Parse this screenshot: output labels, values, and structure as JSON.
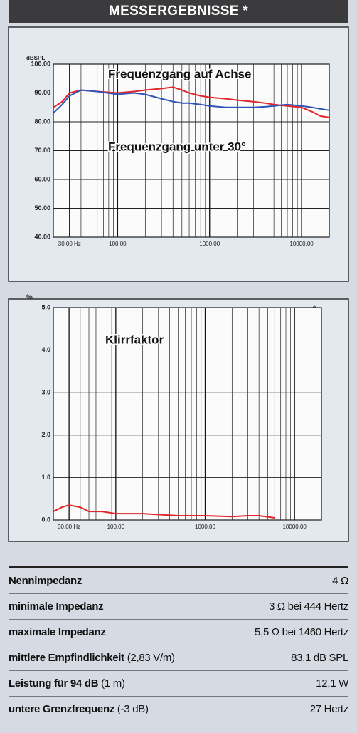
{
  "header": {
    "title": "MESSERGEBNISSE *"
  },
  "chart_data": [
    {
      "type": "line",
      "y_unit": "dBSPL",
      "log_x": true,
      "grid": true,
      "minor_grid": true,
      "x": [
        20,
        25,
        30,
        40,
        60,
        100,
        150,
        200,
        300,
        400,
        500,
        600,
        800,
        1000,
        1500,
        2000,
        3000,
        4000,
        5000,
        7000,
        10000,
        13000,
        16000,
        20000
      ],
      "series": [
        {
          "name": "Frequenzgang auf Achse",
          "color": "#e0262a",
          "values": [
            85,
            87,
            90,
            91,
            90.5,
            90,
            90.5,
            91,
            91.5,
            92,
            91,
            90,
            89,
            88.5,
            88,
            87.5,
            87,
            86.5,
            86,
            85.5,
            85,
            83.5,
            82,
            81.5
          ]
        },
        {
          "name": "Frequenzgang unter 30°",
          "color": "#2f55b8",
          "values": [
            83,
            86,
            89,
            91,
            90.5,
            89.5,
            90,
            89.5,
            88,
            87,
            86.5,
            86.5,
            86,
            85.5,
            85,
            85,
            85,
            85.2,
            85.5,
            86,
            85.5,
            85,
            84.5,
            84
          ]
        }
      ],
      "xlim": [
        20,
        20000
      ],
      "xticks": [
        {
          "value": 30,
          "label": "30.00 Hz"
        },
        {
          "value": 100,
          "label": "100.00"
        },
        {
          "value": 1000,
          "label": "1000.00"
        },
        {
          "value": 10000,
          "label": "10000.00"
        }
      ],
      "ylim": [
        40,
        100
      ],
      "yticks": [
        {
          "value": 40,
          "label": "40.00"
        },
        {
          "value": 50,
          "label": "50.00"
        },
        {
          "value": 60,
          "label": "60.00"
        },
        {
          "value": 70,
          "label": "70.00"
        },
        {
          "value": 80,
          "label": "80.00"
        },
        {
          "value": 90,
          "label": "90.00"
        },
        {
          "value": 100,
          "label": "100.00"
        }
      ]
    },
    {
      "type": "line",
      "y_unit": "%",
      "log_x": true,
      "grid": true,
      "minor_grid": true,
      "x": [
        20,
        25,
        30,
        40,
        50,
        70,
        100,
        200,
        500,
        1000,
        2000,
        3000,
        4000,
        6000
      ],
      "series": [
        {
          "name": "Klirrfaktor",
          "color": "#e0262a",
          "values": [
            0.2,
            0.3,
            0.35,
            0.3,
            0.2,
            0.2,
            0.15,
            0.15,
            0.1,
            0.1,
            0.08,
            0.1,
            0.1,
            0.05
          ]
        }
      ],
      "xlim": [
        20,
        20000
      ],
      "xticks": [
        {
          "value": 30,
          "label": "30.00 Hz"
        },
        {
          "value": 100,
          "label": "100.00"
        },
        {
          "value": 1000,
          "label": "1000.00"
        },
        {
          "value": 10000,
          "label": "10000.00"
        }
      ],
      "ylim": [
        0,
        5
      ],
      "yticks": [
        {
          "value": 0,
          "label": "0.0"
        },
        {
          "value": 1,
          "label": "1.0"
        },
        {
          "value": 2,
          "label": "2.0"
        },
        {
          "value": 3,
          "label": "3.0"
        },
        {
          "value": 4,
          "label": "4.0"
        },
        {
          "value": 5,
          "label": "5.0"
        }
      ]
    }
  ],
  "table": {
    "rows": [
      {
        "label": "Nennimpedanz",
        "value": "4 Ω"
      },
      {
        "label": "minimale Impedanz",
        "value": "3 Ω bei 444 Hertz"
      },
      {
        "label": "maximale Impedanz",
        "value": "5,5 Ω bei 1460 Hertz"
      },
      {
        "label": "mittlere Empfindlichkeit",
        "note": "(2,83 V/m)",
        "value": "83,1 dB SPL"
      },
      {
        "label": "Leistung für 94 dB",
        "note": "(1 m)",
        "value": "12,1 W"
      },
      {
        "label": "untere Grenzfrequenz",
        "note": "(-3 dB)",
        "value": "27 Hertz"
      }
    ]
  }
}
